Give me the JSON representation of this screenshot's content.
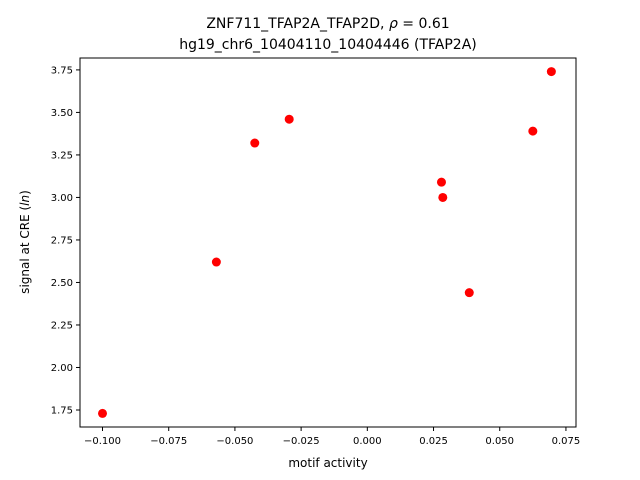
{
  "chart_data": {
    "type": "scatter",
    "title_line1_prefix": "ZNF711_TFAP2A_TFAP2D, ",
    "title_line1_rho": "ρ",
    "title_line1_suffix": " = 0.61",
    "title_line2": "hg19_chr6_10404110_10404446 (TFAP2A)",
    "xlabel": "motif activity",
    "ylabel_prefix": "signal at CRE (",
    "ylabel_italic": "ln",
    "ylabel_suffix": ")",
    "xlim": [
      -0.1085,
      0.0788
    ],
    "ylim": [
      1.65,
      3.82
    ],
    "x_ticks": [
      -0.1,
      -0.075,
      -0.05,
      -0.025,
      0.0,
      0.025,
      0.05,
      0.075
    ],
    "x_tick_labels": [
      "−0.100",
      "−0.075",
      "−0.050",
      "−0.025",
      "0.000",
      "0.025",
      "0.050",
      "0.075"
    ],
    "y_ticks": [
      1.75,
      2.0,
      2.25,
      2.5,
      2.75,
      3.0,
      3.25,
      3.5,
      3.75
    ],
    "y_tick_labels": [
      "1.75",
      "2.00",
      "2.25",
      "2.50",
      "2.75",
      "3.00",
      "3.25",
      "3.50",
      "3.75"
    ],
    "grid": false,
    "marker_color": "#ff0000",
    "points": [
      {
        "x": -0.1,
        "y": 1.73
      },
      {
        "x": -0.057,
        "y": 2.62
      },
      {
        "x": -0.0425,
        "y": 3.32
      },
      {
        "x": -0.0295,
        "y": 3.46
      },
      {
        "x": 0.028,
        "y": 3.09
      },
      {
        "x": 0.0285,
        "y": 3.0
      },
      {
        "x": 0.0385,
        "y": 2.44
      },
      {
        "x": 0.0625,
        "y": 3.39
      },
      {
        "x": 0.0695,
        "y": 3.74
      }
    ]
  }
}
